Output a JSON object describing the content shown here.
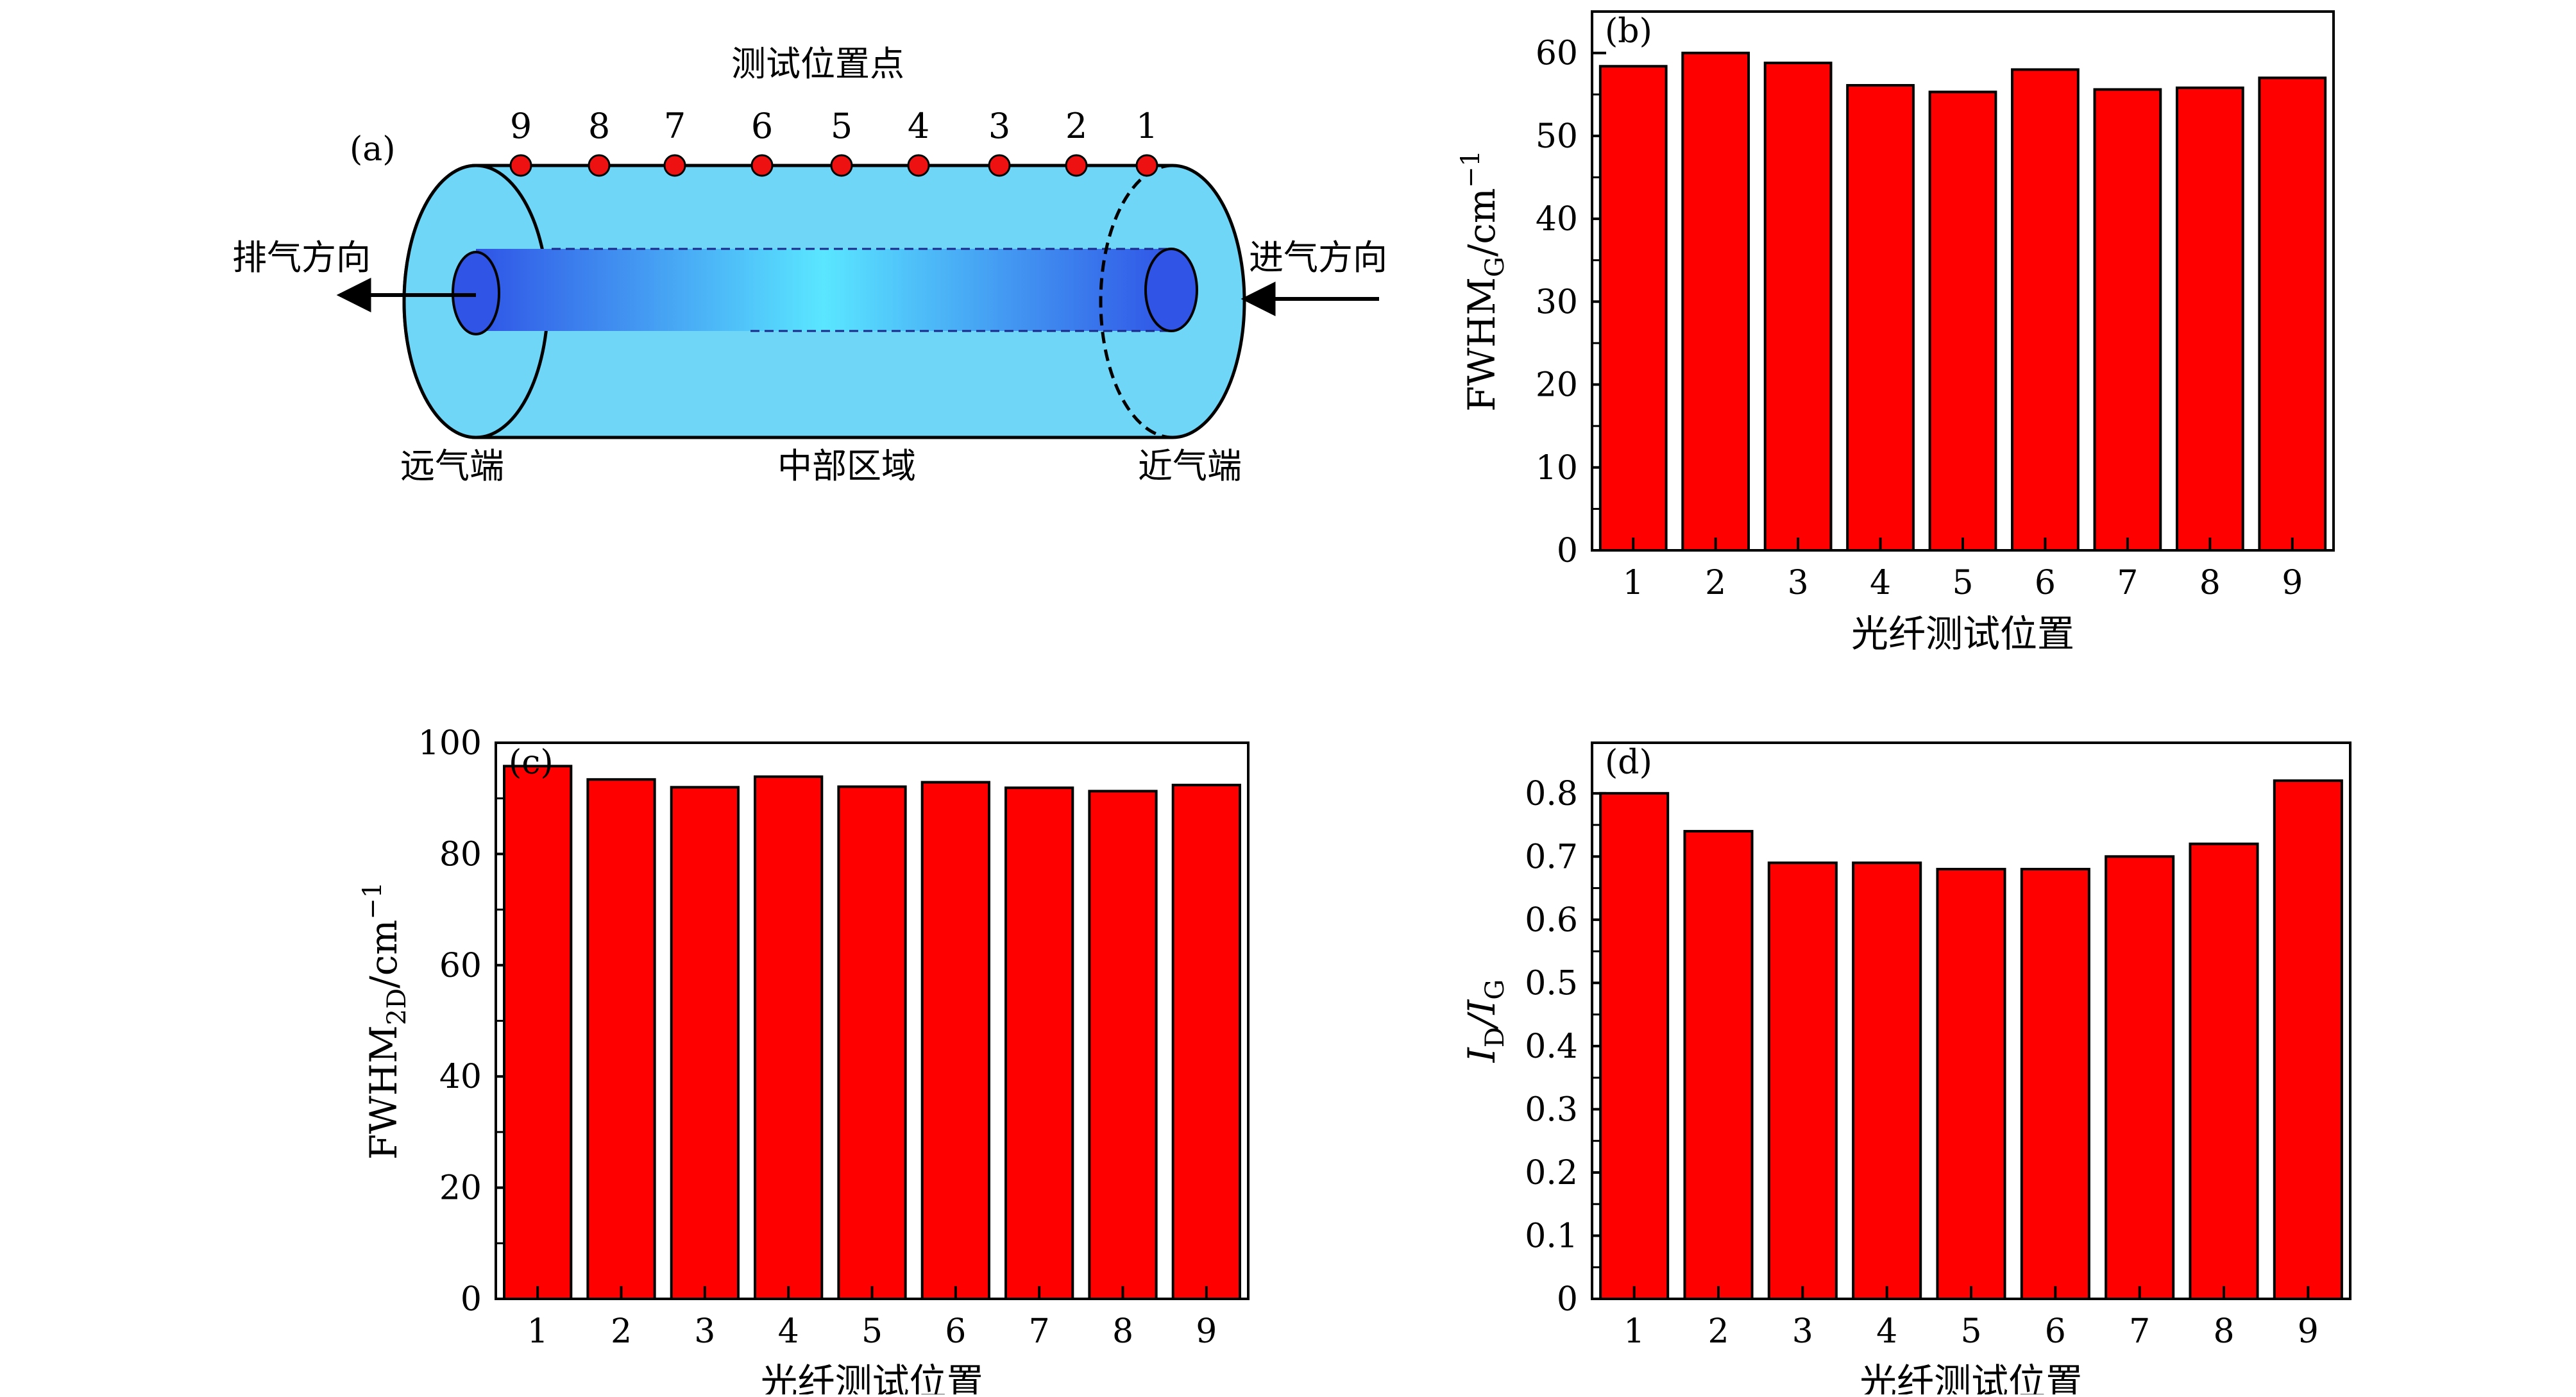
{
  "diagram": {
    "panel_label": "(a)",
    "title": "测试位置点",
    "point_numbers": [
      "9",
      "8",
      "7",
      "6",
      "5",
      "4",
      "3",
      "2",
      "1"
    ],
    "exhaust_label": "排气方向",
    "intake_label": "进气方向",
    "far_end_label": "远气端",
    "middle_label": "中部区域",
    "near_end_label": "近气端",
    "colors": {
      "tube": "#6fd6f7",
      "core_dark": "#2f54e6",
      "core_light": "#5ae6ff",
      "point": "#ee1111"
    }
  },
  "chart_data": [
    {
      "panel": "(b)",
      "type": "bar",
      "categories": [
        "1",
        "2",
        "3",
        "4",
        "5",
        "6",
        "7",
        "8",
        "9"
      ],
      "values": [
        58.4,
        60.0,
        58.8,
        56.1,
        55.3,
        58.0,
        55.6,
        55.8,
        57.0
      ],
      "xlabel": "光纤测试位置",
      "ylabel_main": "FWHM",
      "ylabel_sub": "G",
      "ylabel_tail": "/cm",
      "ylabel_sup": "−1",
      "ylim": [
        0,
        65
      ],
      "yticks": [
        "0",
        "10",
        "20",
        "30",
        "40",
        "50",
        "60"
      ],
      "bar_color": "#ff0000"
    },
    {
      "panel": "(c)",
      "type": "bar",
      "categories": [
        "1",
        "2",
        "3",
        "4",
        "5",
        "6",
        "7",
        "8",
        "9"
      ],
      "values": [
        95.8,
        93.4,
        92.0,
        93.9,
        92.1,
        92.9,
        91.9,
        91.3,
        92.4
      ],
      "xlabel": "光纤测试位置",
      "ylabel_main": "FWHM",
      "ylabel_sub": "2D",
      "ylabel_tail": "/cm",
      "ylabel_sup": "−1",
      "ylim": [
        0,
        100
      ],
      "yticks": [
        "0",
        "20",
        "40",
        "60",
        "80",
        "100"
      ],
      "bar_color": "#ff0000"
    },
    {
      "panel": "(d)",
      "type": "bar",
      "categories": [
        "1",
        "2",
        "3",
        "4",
        "5",
        "6",
        "7",
        "8",
        "9"
      ],
      "values": [
        0.8,
        0.74,
        0.69,
        0.69,
        0.68,
        0.68,
        0.7,
        0.72,
        0.82
      ],
      "xlabel": "光纤测试位置",
      "ylabel_main": "I",
      "ylabel_sub": "D",
      "ylabel_tail": "/I",
      "ylabel_sub2": "G",
      "ylim": [
        0,
        0.88
      ],
      "yticks": [
        "0",
        "0.1",
        "0.2",
        "0.3",
        "0.4",
        "0.5",
        "0.6",
        "0.7",
        "0.8"
      ],
      "bar_color": "#ff0000"
    }
  ]
}
